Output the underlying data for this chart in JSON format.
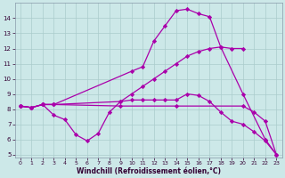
{
  "line1_x": [
    0,
    1,
    2,
    3,
    10,
    11,
    12,
    13,
    14,
    15,
    16,
    17,
    18,
    20,
    22,
    23
  ],
  "line1_y": [
    8.2,
    8.1,
    8.3,
    8.3,
    10.5,
    10.8,
    12.5,
    13.5,
    14.5,
    14.6,
    14.3,
    14.1,
    12.1,
    9.0,
    6.0,
    5.0
  ],
  "line2_x": [
    0,
    1,
    2,
    3,
    9,
    10,
    11,
    12,
    13,
    14,
    15,
    16,
    17,
    18,
    19,
    20
  ],
  "line2_y": [
    8.2,
    8.1,
    8.3,
    8.3,
    8.5,
    9.0,
    9.5,
    10.0,
    10.5,
    11.0,
    11.5,
    11.8,
    12.0,
    12.1,
    12.0,
    12.0
  ],
  "line3_x": [
    0,
    1,
    2,
    3,
    4,
    5,
    6,
    7,
    8,
    9,
    10,
    11,
    12,
    13,
    14,
    15,
    16,
    17,
    18,
    19,
    20,
    21,
    22,
    23
  ],
  "line3_y": [
    8.2,
    8.1,
    8.3,
    7.6,
    7.3,
    6.3,
    5.9,
    6.4,
    7.8,
    8.5,
    8.6,
    8.6,
    8.6,
    8.6,
    8.6,
    9.0,
    8.9,
    8.5,
    7.8,
    7.2,
    7.0,
    6.5,
    5.9,
    5.0
  ],
  "line4_x": [
    0,
    1,
    2,
    3,
    9,
    14,
    20,
    21,
    22,
    23
  ],
  "line4_y": [
    8.2,
    8.1,
    8.3,
    8.3,
    8.2,
    8.2,
    8.2,
    7.8,
    7.2,
    5.0
  ],
  "color": "#aa00aa",
  "bg_color": "#cce8e8",
  "grid_color": "#aacccc",
  "xlabel": "Windchill (Refroidissement éolien,°C)",
  "xlim": [
    -0.5,
    23.5
  ],
  "ylim": [
    4.8,
    15.0
  ],
  "yticks": [
    5,
    6,
    7,
    8,
    9,
    10,
    11,
    12,
    13,
    14
  ],
  "xticks": [
    0,
    1,
    2,
    3,
    4,
    5,
    6,
    7,
    8,
    9,
    10,
    11,
    12,
    13,
    14,
    15,
    16,
    17,
    18,
    19,
    20,
    21,
    22,
    23
  ],
  "marker": "D",
  "markersize": 2.2,
  "linewidth": 0.9,
  "tick_fontsize": 5.0,
  "xlabel_fontsize": 5.5
}
